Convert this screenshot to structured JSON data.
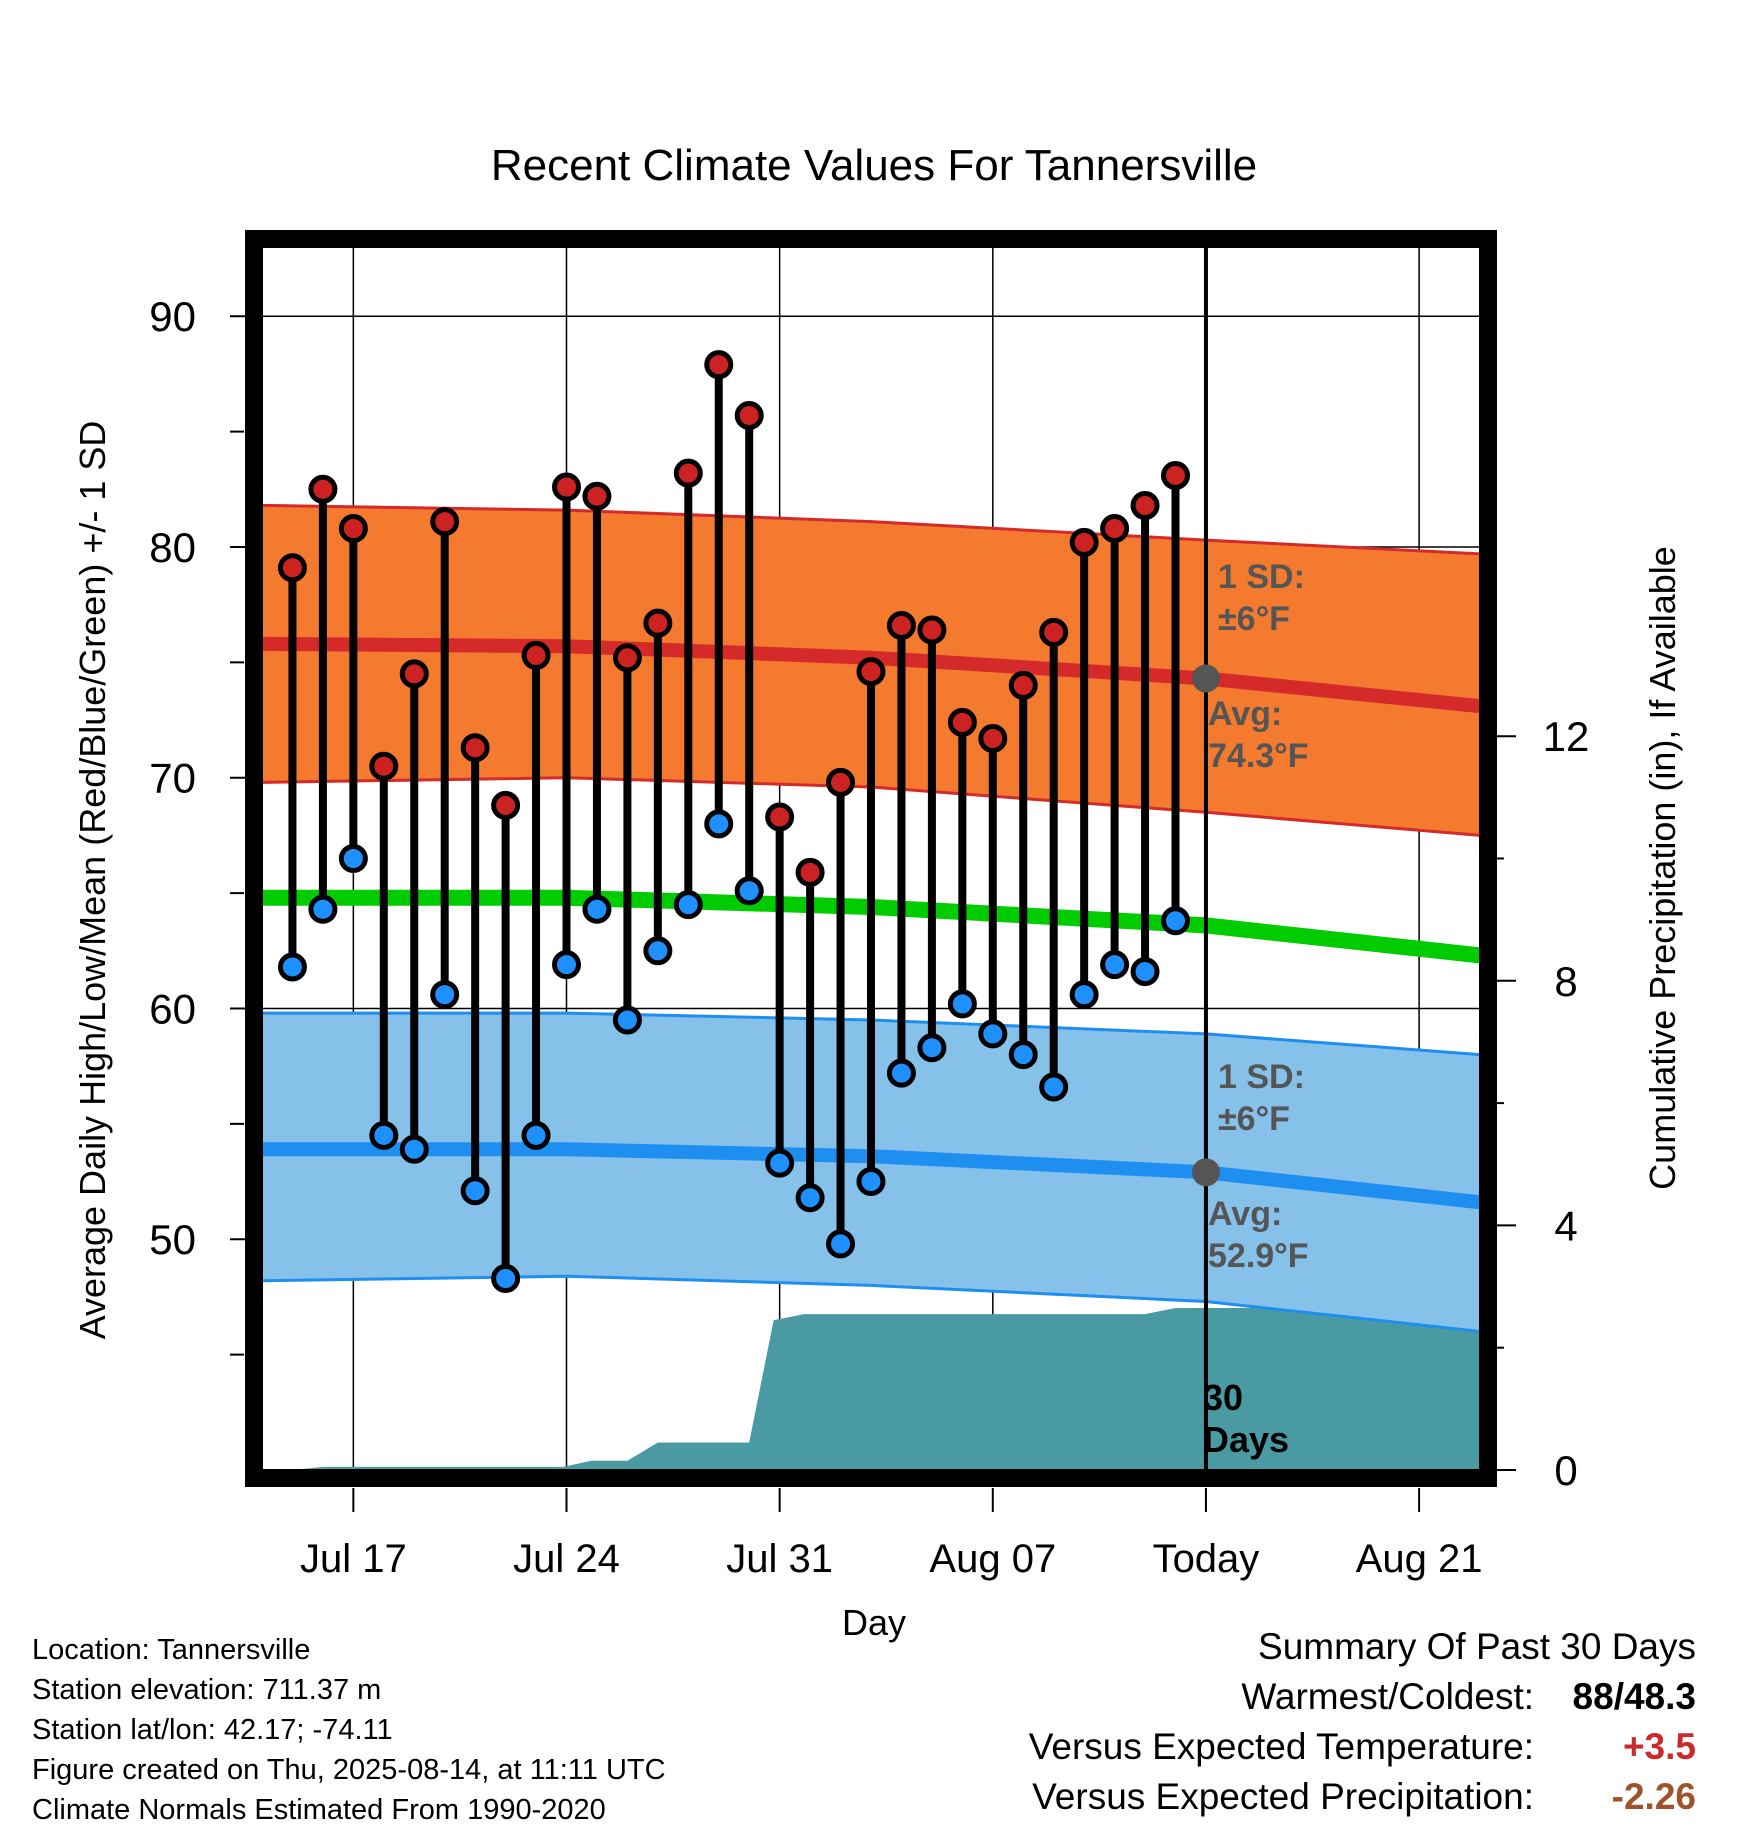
{
  "chart_data": {
    "type": "line",
    "title": "Recent Climate Values For Tannersville",
    "xlabel": "Day",
    "ylabel": "Average Daily High/Low/Mean (Red/Blue/Green) +/- 1 SD",
    "y2label": "Cumulative Precipitation (in), If Available",
    "ylim": [
      40,
      93
    ],
    "y2lim": [
      0,
      20
    ],
    "y_ticks": [
      "50",
      "60",
      "70",
      "80",
      "90"
    ],
    "y2_ticks": [
      "0",
      "4",
      "8",
      "12"
    ],
    "x_ticks": [
      "Jul 17",
      "Jul 24",
      "Jul 31",
      "Aug 07",
      "Today",
      "Aug 21"
    ],
    "x_tick_days": [
      3,
      10,
      17,
      24,
      31,
      38
    ],
    "xlim": [
      0,
      40
    ],
    "today_day": 31,
    "days": [
      1,
      2,
      3,
      4,
      5,
      6,
      7,
      8,
      9,
      10,
      11,
      12,
      13,
      14,
      15,
      16,
      17,
      18,
      19,
      20,
      21,
      22,
      23,
      24,
      25,
      26,
      27,
      28,
      29,
      30
    ],
    "highs": [
      79.1,
      82.5,
      80.8,
      70.5,
      74.5,
      81.1,
      71.3,
      68.8,
      75.3,
      82.6,
      82.2,
      75.2,
      76.7,
      83.2,
      87.9,
      85.7,
      68.3,
      65.9,
      69.8,
      74.6,
      76.6,
      76.4,
      72.4,
      71.7,
      74.0,
      76.3,
      80.2,
      80.8,
      81.8,
      83.1
    ],
    "lows": [
      61.8,
      64.3,
      66.5,
      54.5,
      53.9,
      60.6,
      52.1,
      48.3,
      54.5,
      61.9,
      64.3,
      59.5,
      62.5,
      64.5,
      68.0,
      65.1,
      53.3,
      51.8,
      49.8,
      52.5,
      57.2,
      58.3,
      60.2,
      58.9,
      58.0,
      56.6,
      60.6,
      61.9,
      61.6,
      63.8
    ],
    "normal_high": {
      "x": [
        0,
        10,
        20,
        31,
        40
      ],
      "y": [
        75.8,
        75.7,
        75.2,
        74.3,
        73.1
      ]
    },
    "normal_high_sd": {
      "upper": [
        81.8,
        81.6,
        81.1,
        80.3,
        79.7
      ],
      "lower": [
        69.8,
        70.0,
        69.6,
        68.5,
        67.5
      ]
    },
    "normal_low": {
      "x": [
        0,
        10,
        20,
        31,
        40
      ],
      "y": [
        53.9,
        53.9,
        53.6,
        52.9,
        51.6
      ]
    },
    "normal_low_sd": {
      "upper": [
        59.8,
        59.8,
        59.5,
        58.9,
        58.0
      ],
      "lower": [
        48.2,
        48.4,
        48.0,
        47.3,
        46.0
      ]
    },
    "normal_mean": {
      "x": [
        0,
        10,
        20,
        31,
        40
      ],
      "y": [
        64.8,
        64.8,
        64.4,
        63.6,
        62.3
      ]
    },
    "precip_cumulative": {
      "x": [
        0,
        1,
        2,
        9.9,
        10.8,
        12,
        13,
        16,
        16.8,
        17.8,
        29,
        30,
        40
      ],
      "y": [
        0.0,
        0.0,
        0.05,
        0.05,
        0.15,
        0.15,
        0.45,
        0.45,
        2.45,
        2.55,
        2.55,
        2.65,
        2.65
      ]
    },
    "annotations": {
      "high_sd_label": [
        "1 SD:",
        "±6°F"
      ],
      "high_avg_label": [
        "Avg:",
        "74.3°F"
      ],
      "low_sd_label": [
        "1 SD:",
        "±6°F"
      ],
      "low_avg_label": [
        "Avg:",
        "52.9°F"
      ],
      "days_label": [
        "30",
        "Days"
      ]
    },
    "colors": {
      "high_band": "#f47a30",
      "high_line": "#d42a2a",
      "low_band": "#85c1e8",
      "low_line": "#1e8ef0",
      "mean_line": "#00cc00",
      "precip": "#4a9aa4",
      "high_dot": "#cc2222",
      "low_dot": "#1e90ff",
      "today_marker": "#555555"
    }
  },
  "footer": {
    "location": "Location: Tannersville",
    "elevation": "Station elevation: 711.37 m",
    "latlon": "Station lat/lon: 42.17; -74.11",
    "created": "Figure created on Thu, 2025-08-14, at 11:11 UTC",
    "normals": "Climate Normals Estimated From 1990-2020"
  },
  "summary": {
    "title": "Summary Of Past 30 Days",
    "warmest_coldest_label": "Warmest/Coldest:",
    "warmest_coldest_value": "88/48.3",
    "temp_label": "Versus Expected Temperature:",
    "temp_value": "+3.5",
    "precip_label": "Versus Expected Precipitation:",
    "precip_value": "-2.26"
  }
}
